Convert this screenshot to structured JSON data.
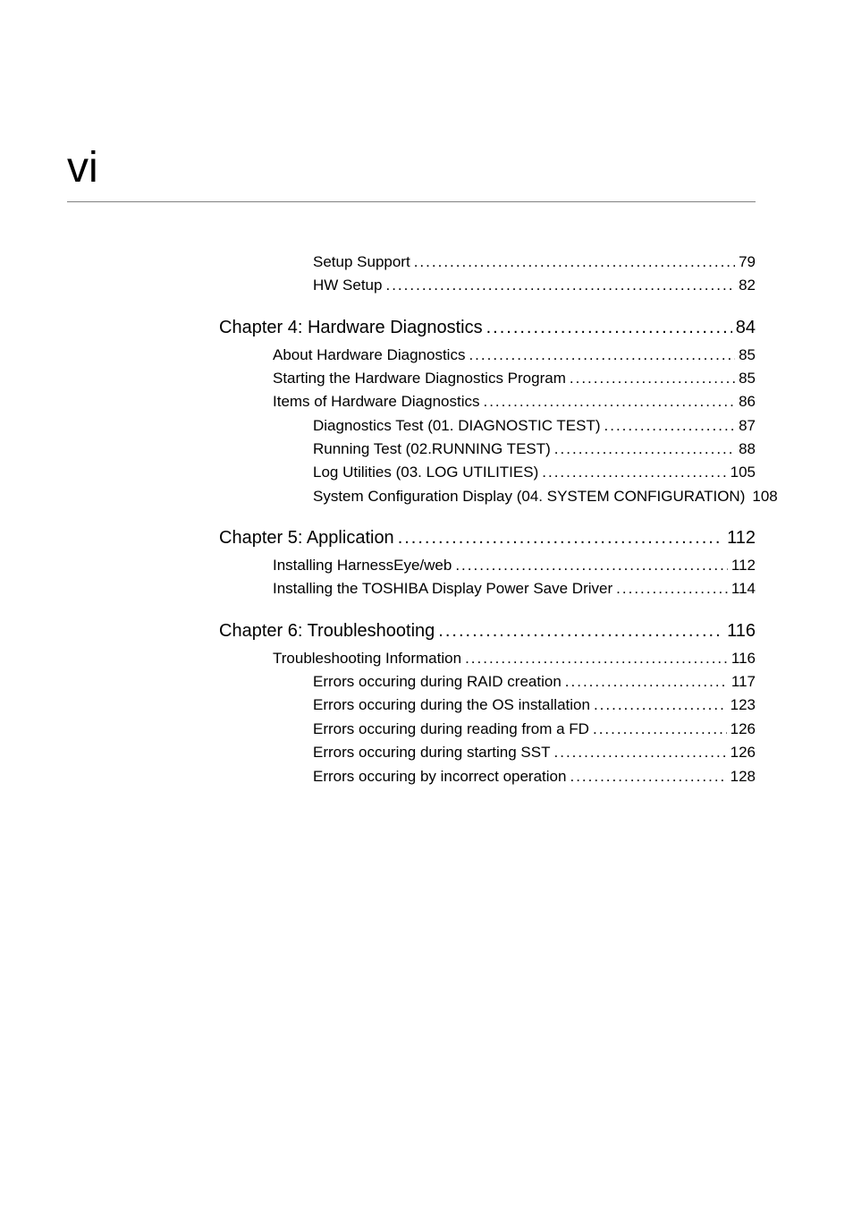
{
  "page_number": "vi",
  "toc": {
    "initial_subitems": [
      {
        "label": "Setup Support",
        "page": "79",
        "indent": 2
      },
      {
        "label": "HW Setup",
        "page": "82",
        "indent": 2
      }
    ],
    "chapters": [
      {
        "label": "Chapter 4: Hardware Diagnostics",
        "page": "84",
        "subitems": [
          {
            "label": "About Hardware Diagnostics",
            "page": "85",
            "indent": 1
          },
          {
            "label": "Starting the Hardware Diagnostics Program",
            "page": "85",
            "indent": 1
          },
          {
            "label": "Items of Hardware Diagnostics",
            "page": "86",
            "indent": 1
          },
          {
            "label": "Diagnostics Test (01. DIAGNOSTIC TEST)",
            "page": "87",
            "indent": 2
          },
          {
            "label": "Running Test (02.RUNNING TEST)",
            "page": "88",
            "indent": 2
          },
          {
            "label": "Log Utilities (03. LOG UTILITIES)",
            "page": "105",
            "indent": 2
          },
          {
            "label": "System Configuration Display (04. SYSTEM CONFIGURATION)",
            "page": "108",
            "indent": 2,
            "no_dots": true
          }
        ]
      },
      {
        "label": "Chapter 5: Application",
        "page": "112",
        "subitems": [
          {
            "label": "Installing HarnessEye/web",
            "page": "112",
            "indent": 1
          },
          {
            "label": "Installing the TOSHIBA Display Power Save Driver",
            "page": "114",
            "indent": 1
          }
        ]
      },
      {
        "label": "Chapter 6: Troubleshooting",
        "page": "116",
        "subitems": [
          {
            "label": "Troubleshooting Information",
            "page": "116",
            "indent": 1
          },
          {
            "label": "Errors occuring during RAID creation",
            "page": "117",
            "indent": 2
          },
          {
            "label": "Errors occuring during the OS installation",
            "page": "123",
            "indent": 2
          },
          {
            "label": "Errors occuring during reading from a FD",
            "page": "126",
            "indent": 2
          },
          {
            "label": "Errors occuring during starting SST",
            "page": "126",
            "indent": 2
          },
          {
            "label": "Errors occuring by incorrect operation",
            "page": "128",
            "indent": 2
          }
        ]
      }
    ]
  },
  "styling": {
    "background_color": "#ffffff",
    "text_color": "#000000",
    "separator_color": "#808080",
    "page_number_fontsize": 48,
    "chapter_fontsize": 20,
    "item_fontsize": 17,
    "font_family": "Arial, Helvetica, sans-serif",
    "dot_fill": "....................................................................................................................."
  }
}
